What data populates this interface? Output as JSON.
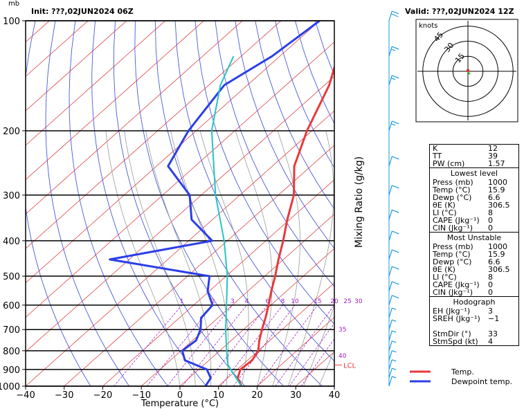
{
  "header": {
    "init_label": "Init: ???,02JUN2024 06Z",
    "valid_label": "Valid: ???,02JUN2024 12Z",
    "pressure_unit": "mb"
  },
  "colors": {
    "temp": "#e8393a",
    "dewpoint": "#2b3fe6",
    "parcel": "#22c4c4",
    "isotherm": "#e05555",
    "dry_adiabat": "#4a58d8",
    "moist_adiabat": "#9a9a9a",
    "mixing_ratio": "#a020c8",
    "wind": "#1b9ae0"
  },
  "chart_data": {
    "type": "skew-t",
    "xlabel": "Temperature (°C)",
    "ylabel_right": "Mixing Ratio (g/kg)",
    "x_range": [
      -40,
      40
    ],
    "p_range": [
      1000,
      100
    ],
    "x_ticks": [
      "−40",
      "−30",
      "−20",
      "−10",
      "0",
      "10",
      "20",
      "30",
      "40"
    ],
    "x_tick_values": [
      -40,
      -30,
      -20,
      -10,
      0,
      10,
      20,
      30,
      40
    ],
    "p_ticks": [
      100,
      200,
      300,
      400,
      500,
      600,
      700,
      800,
      900,
      1000
    ],
    "mixing_ratio_labels": [
      "1",
      "2",
      "3",
      "4",
      "6",
      "8",
      "10",
      "15",
      "20",
      "25",
      "30"
    ],
    "mixing_ratio_values": [
      1,
      2,
      3,
      4,
      6,
      8,
      10,
      15,
      20,
      25,
      30
    ],
    "mixing_ratio_side_labels": [
      "35",
      "40"
    ],
    "lcl_label": "LCL",
    "lcl_pressure": 875,
    "series": [
      {
        "name": "Temp.",
        "key": "temp",
        "points": [
          [
            1000,
            15.9
          ],
          [
            950,
            12.6
          ],
          [
            900,
            10.8
          ],
          [
            850,
            11.2
          ],
          [
            800,
            10
          ],
          [
            750,
            7.3
          ],
          [
            700,
            4.8
          ],
          [
            650,
            2.3
          ],
          [
            600,
            -0.6
          ],
          [
            550,
            -3.9
          ],
          [
            500,
            -7.3
          ],
          [
            450,
            -11.3
          ],
          [
            400,
            -15.5
          ],
          [
            350,
            -20.6
          ],
          [
            300,
            -26
          ],
          [
            250,
            -34.3
          ],
          [
            200,
            -41.3
          ],
          [
            150,
            -48.8
          ],
          [
            125,
            -55
          ],
          [
            100,
            -60
          ]
        ]
      },
      {
        "name": "Dewpoint temp.",
        "key": "dewpoint",
        "points": [
          [
            1000,
            6.6
          ],
          [
            950,
            5.6
          ],
          [
            900,
            2.1
          ],
          [
            850,
            -6.2
          ],
          [
            800,
            -9.7
          ],
          [
            750,
            -9.1
          ],
          [
            700,
            -11.1
          ],
          [
            650,
            -14.4
          ],
          [
            600,
            -15.1
          ],
          [
            550,
            -20.4
          ],
          [
            500,
            -24.3
          ],
          [
            450,
            -55
          ],
          [
            400,
            -33.9
          ],
          [
            350,
            -45.4
          ],
          [
            300,
            -53
          ],
          [
            250,
            -67
          ],
          [
            200,
            -72
          ],
          [
            150,
            -76
          ],
          [
            125,
            -72
          ],
          [
            100,
            -70
          ]
        ]
      },
      {
        "name": "",
        "key": "parcel",
        "points": [
          [
            1000,
            15.9
          ],
          [
            900,
            8.3
          ],
          [
            875,
            6.3
          ],
          [
            850,
            4.8
          ],
          [
            800,
            1.8
          ],
          [
            700,
            -4.6
          ],
          [
            600,
            -11.5
          ],
          [
            500,
            -19.7
          ],
          [
            400,
            -30.8
          ],
          [
            300,
            -46.3
          ],
          [
            200,
            -66
          ],
          [
            150,
            -77
          ],
          [
            125,
            -82
          ]
        ]
      }
    ],
    "winds": [
      {
        "p": 1000,
        "spd": 4,
        "dir": 200
      },
      {
        "p": 950,
        "spd": 4,
        "dir": 190
      },
      {
        "p": 900,
        "spd": 5,
        "dir": 200
      },
      {
        "p": 850,
        "spd": 6,
        "dir": 210
      },
      {
        "p": 800,
        "spd": 6,
        "dir": 210
      },
      {
        "p": 750,
        "spd": 5,
        "dir": 220
      },
      {
        "p": 700,
        "spd": 5,
        "dir": 230
      },
      {
        "p": 650,
        "spd": 6,
        "dir": 240
      },
      {
        "p": 600,
        "spd": 8,
        "dir": 250
      },
      {
        "p": 550,
        "spd": 8,
        "dir": 260
      },
      {
        "p": 500,
        "spd": 10,
        "dir": 260
      },
      {
        "p": 450,
        "spd": 10,
        "dir": 265
      },
      {
        "p": 400,
        "spd": 10,
        "dir": 270
      },
      {
        "p": 350,
        "spd": 10,
        "dir": 270
      },
      {
        "p": 300,
        "spd": 10,
        "dir": 270
      },
      {
        "p": 250,
        "spd": 10,
        "dir": 275
      },
      {
        "p": 200,
        "spd": 15,
        "dir": 275
      },
      {
        "p": 150,
        "spd": 15,
        "dir": 280
      },
      {
        "p": 125,
        "spd": 15,
        "dir": 280
      },
      {
        "p": 100,
        "spd": 20,
        "dir": 285
      }
    ],
    "hodograph": {
      "units_label": "knots",
      "ring_labels": [
        "15",
        "30",
        "45"
      ],
      "ring_values": [
        15,
        30,
        45
      ],
      "points": [
        [
          0,
          0
        ],
        [
          1,
          -2
        ],
        [
          2,
          -3
        ]
      ]
    }
  },
  "indices": {
    "rows_top": [
      {
        "label": "K",
        "value": "12"
      },
      {
        "label": "TT",
        "value": "39"
      },
      {
        "label": "PW (cm)",
        "value": "1.57"
      }
    ],
    "lowest_level": {
      "title": "Lowest level",
      "rows": [
        {
          "label": "Press (mb)",
          "value": "1000"
        },
        {
          "label": "Temp (°C)",
          "value": "15.9"
        },
        {
          "label": "Dewp (°C)",
          "value": "6.6"
        },
        {
          "label": "θE (K)",
          "value": "306.5"
        },
        {
          "label": "LI (°C)",
          "value": "8"
        },
        {
          "label": "CAPE (Jkg⁻¹)",
          "value": "0"
        },
        {
          "label": "CIN (Jkg⁻¹)",
          "value": "0"
        }
      ]
    },
    "most_unstable": {
      "title": "Most Unstable",
      "rows": [
        {
          "label": "Press (mb)",
          "value": "1000"
        },
        {
          "label": "Temp (°C)",
          "value": "15.9"
        },
        {
          "label": "Dewp (°C)",
          "value": "6.6"
        },
        {
          "label": "θE (K)",
          "value": "306.5"
        },
        {
          "label": "LI (°C)",
          "value": "8"
        },
        {
          "label": "CAPE (Jkg⁻¹)",
          "value": "0"
        },
        {
          "label": "CIN (Jkg⁻¹)",
          "value": "0"
        }
      ]
    },
    "hodograph": {
      "title": "Hodograph",
      "rows": [
        {
          "label": "EH (Jkg⁻¹)",
          "value": "3"
        },
        {
          "label": "SREH (Jkg⁻¹)",
          "value": "−1"
        },
        {
          "label": "",
          "value": ""
        },
        {
          "label": "StmDir (°)",
          "value": "33"
        },
        {
          "label": "StmSpd (kt)",
          "value": "4"
        }
      ]
    }
  },
  "legend": {
    "temp_label": "Temp.",
    "dew_label": "Dewpoint temp."
  }
}
